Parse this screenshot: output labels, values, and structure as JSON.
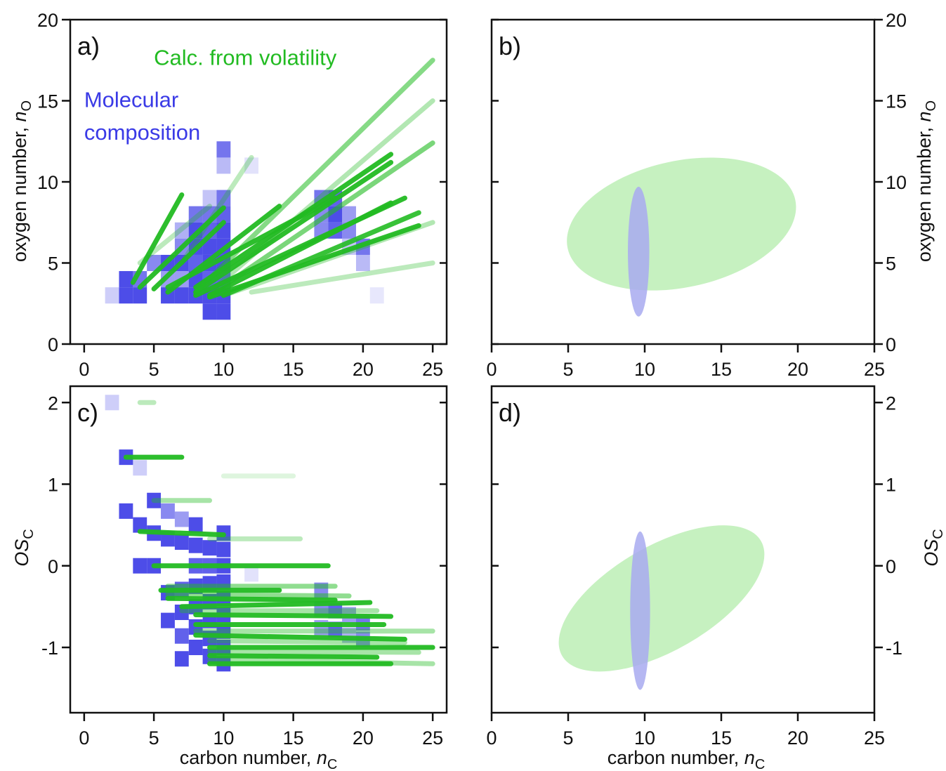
{
  "colors": {
    "green": "#22bb22",
    "green_light": "#b8eeb0",
    "blue": "#3a3ae6",
    "blue_light": "#a8aaf0",
    "axis": "#111111"
  },
  "axis_labels": {
    "no_prefix": "oxygen number, ",
    "no_sym": "n",
    "no_sub": "O",
    "os_sym": "OS",
    "os_sub": "C",
    "nc_prefix": "carbon number, ",
    "nc_sym": "n",
    "nc_sub": "C"
  },
  "chart_data": [
    {
      "panel": "a",
      "type": "scatter",
      "label": "a)",
      "xlim": [
        -1,
        26
      ],
      "ylim": [
        0,
        20
      ],
      "xticks": [
        0,
        5,
        10,
        15,
        20,
        25
      ],
      "yticks": [
        0,
        5,
        10,
        15,
        20
      ],
      "xlabel": "",
      "ylabel": "oxygen number, nO",
      "annotations": [
        {
          "text": "Calc. from volatility",
          "color": "green",
          "x": 5,
          "y": 17.2
        },
        {
          "text": "Molecular",
          "color": "blue",
          "x": 0,
          "y": 14.6
        },
        {
          "text": "composition",
          "color": "blue",
          "x": 0,
          "y": 12.6
        }
      ],
      "molecular_composition": [
        [
          2,
          3,
          0.25
        ],
        [
          3,
          3,
          0.9
        ],
        [
          3,
          4,
          0.9
        ],
        [
          4,
          3,
          0.9
        ],
        [
          4,
          4,
          0.7
        ],
        [
          5,
          5,
          0.6
        ],
        [
          6,
          3,
          0.9
        ],
        [
          6,
          4,
          0.5
        ],
        [
          6,
          5,
          0.9
        ],
        [
          7,
          3,
          0.9
        ],
        [
          7,
          4,
          0.5
        ],
        [
          7,
          5,
          0.9
        ],
        [
          7,
          6,
          0.6
        ],
        [
          7,
          7,
          0.4
        ],
        [
          8,
          3,
          0.9
        ],
        [
          8,
          4,
          0.9
        ],
        [
          8,
          5,
          0.8
        ],
        [
          8,
          6,
          0.9
        ],
        [
          8,
          7,
          0.9
        ],
        [
          8,
          8,
          0.7
        ],
        [
          9,
          2,
          0.9
        ],
        [
          9,
          3,
          0.9
        ],
        [
          9,
          4,
          0.8
        ],
        [
          9,
          5,
          0.9
        ],
        [
          9,
          6,
          0.9
        ],
        [
          9,
          7,
          0.8
        ],
        [
          9,
          8,
          0.7
        ],
        [
          9,
          9,
          0.3
        ],
        [
          10,
          2,
          0.9
        ],
        [
          10,
          3,
          0.9
        ],
        [
          10,
          4,
          0.8
        ],
        [
          10,
          5,
          0.9
        ],
        [
          10,
          6,
          0.9
        ],
        [
          10,
          7,
          0.9
        ],
        [
          10,
          8,
          0.8
        ],
        [
          10,
          9,
          0.7
        ],
        [
          10,
          11,
          0.35
        ],
        [
          10,
          12,
          0.7
        ],
        [
          12,
          11,
          0.15
        ],
        [
          17,
          7,
          0.6
        ],
        [
          17,
          8,
          0.6
        ],
        [
          17,
          9,
          0.7
        ],
        [
          18,
          7,
          0.8
        ],
        [
          18,
          8,
          0.9
        ],
        [
          18,
          9,
          0.8
        ],
        [
          19,
          7,
          0.6
        ],
        [
          19,
          8,
          0.5
        ],
        [
          19,
          6,
          0.3
        ],
        [
          20,
          6,
          0.7
        ],
        [
          20,
          5,
          0.35
        ],
        [
          21,
          3,
          0.12
        ]
      ],
      "calc_from_volatility": [
        [
          [
            3.5,
            3.8
          ],
          [
            7,
            9.2
          ],
          0.95
        ],
        [
          [
            4,
            3.5
          ],
          [
            10,
            8.4
          ],
          0.95
        ],
        [
          [
            5,
            3.4
          ],
          [
            10,
            7.5
          ],
          0.95
        ],
        [
          [
            6,
            3.2
          ],
          [
            14,
            8.5
          ],
          0.95
        ],
        [
          [
            6,
            3.5
          ],
          [
            18,
            9.0
          ],
          0.95
        ],
        [
          [
            8,
            3.5
          ],
          [
            22,
            11.7
          ],
          0.95
        ],
        [
          [
            8,
            3.2
          ],
          [
            22,
            11.2
          ],
          0.95
        ],
        [
          [
            8,
            3.0
          ],
          [
            23,
            9.0
          ],
          0.95
        ],
        [
          [
            9,
            3.0
          ],
          [
            22,
            8.7
          ],
          0.95
        ],
        [
          [
            9,
            2.9
          ],
          [
            24,
            7.3
          ],
          0.95
        ],
        [
          [
            10,
            3.0
          ],
          [
            24,
            8.1
          ],
          0.9
        ],
        [
          [
            8,
            3.2
          ],
          [
            25,
            17.5
          ],
          0.55
        ],
        [
          [
            9,
            3.2
          ],
          [
            25,
            15.0
          ],
          0.35
        ],
        [
          [
            9,
            3.0
          ],
          [
            25,
            12.4
          ],
          0.6
        ],
        [
          [
            10,
            3.0
          ],
          [
            25,
            7.5
          ],
          0.35
        ],
        [
          [
            12,
            3.2
          ],
          [
            25,
            5.0
          ],
          0.3
        ],
        [
          [
            7,
            5.0
          ],
          [
            12,
            11.5
          ],
          0.3
        ],
        [
          [
            4,
            5.0
          ],
          [
            9,
            8.5
          ],
          0.3
        ]
      ]
    },
    {
      "panel": "b",
      "type": "scatter",
      "label": "b)",
      "xlim": [
        0,
        25
      ],
      "ylim": [
        0,
        20
      ],
      "xticks": [
        0,
        5,
        10,
        15,
        20,
        25
      ],
      "yticks": [
        0,
        5,
        10,
        15,
        20
      ],
      "xlabel": "",
      "ylabel": "oxygen number, nO",
      "ellipses": [
        {
          "series": "calc_from_volatility",
          "cx": 12.4,
          "cy": 7.4,
          "rx": 7.6,
          "ry": 3.9,
          "angle_deg": 12
        },
        {
          "series": "molecular_composition",
          "cx": 9.6,
          "cy": 5.7,
          "rx": 0.7,
          "ry": 4.0,
          "angle_deg": 0
        }
      ]
    },
    {
      "panel": "c",
      "type": "scatter",
      "label": "c)",
      "xlim": [
        -1,
        26
      ],
      "ylim": [
        -1.8,
        2.2
      ],
      "xticks": [
        0,
        5,
        10,
        15,
        20,
        25
      ],
      "yticks": [
        -1,
        0,
        1,
        2
      ],
      "xlabel": "carbon number, nC",
      "ylabel": "OSC",
      "molecular_composition": [
        [
          2,
          2.0,
          0.25
        ],
        [
          3,
          1.33,
          0.9
        ],
        [
          3,
          0.67,
          0.9
        ],
        [
          4,
          1.2,
          0.25
        ],
        [
          4,
          0.5,
          0.9
        ],
        [
          4,
          0.0,
          0.9
        ],
        [
          5,
          0.8,
          0.9
        ],
        [
          5,
          0.4,
          0.9
        ],
        [
          5,
          0.0,
          0.9
        ],
        [
          6,
          0.33,
          0.9
        ],
        [
          6,
          0.67,
          0.6
        ],
        [
          6,
          -0.33,
          0.9
        ],
        [
          6,
          -0.67,
          0.9
        ],
        [
          7,
          0.57,
          0.5
        ],
        [
          7,
          0.29,
          0.9
        ],
        [
          7,
          -0.29,
          0.8
        ],
        [
          7,
          -0.57,
          0.9
        ],
        [
          7,
          -0.86,
          0.8
        ],
        [
          7,
          -1.14,
          0.9
        ],
        [
          8,
          0.5,
          0.9
        ],
        [
          8,
          0.25,
          0.9
        ],
        [
          8,
          0.0,
          0.8
        ],
        [
          8,
          -0.25,
          0.9
        ],
        [
          8,
          -0.5,
          0.9
        ],
        [
          8,
          -0.75,
          0.9
        ],
        [
          8,
          -1.0,
          0.9
        ],
        [
          9,
          0.22,
          0.9
        ],
        [
          9,
          0.0,
          0.8
        ],
        [
          9,
          -0.22,
          0.9
        ],
        [
          9,
          -0.44,
          0.9
        ],
        [
          9,
          -0.67,
          0.9
        ],
        [
          9,
          -0.89,
          0.9
        ],
        [
          9,
          -1.11,
          0.9
        ],
        [
          10,
          0.4,
          0.9
        ],
        [
          10,
          0.2,
          0.9
        ],
        [
          10,
          0.0,
          0.9
        ],
        [
          10,
          -0.2,
          0.9
        ],
        [
          10,
          -0.4,
          0.9
        ],
        [
          10,
          -0.6,
          0.9
        ],
        [
          10,
          -0.8,
          0.9
        ],
        [
          10,
          -1.0,
          0.9
        ],
        [
          10,
          -1.2,
          0.9
        ],
        [
          12,
          -0.1,
          0.15
        ],
        [
          17,
          -0.3,
          0.6
        ],
        [
          17,
          -0.53,
          0.6
        ],
        [
          17,
          -0.76,
          0.5
        ],
        [
          18,
          -0.55,
          0.8
        ],
        [
          18,
          -0.78,
          0.8
        ],
        [
          19,
          -0.6,
          0.5
        ],
        [
          19,
          -0.85,
          0.4
        ],
        [
          20,
          -0.7,
          0.7
        ],
        [
          20,
          -0.9,
          0.6
        ]
      ],
      "calc_from_volatility": [
        [
          [
            3,
            1.33
          ],
          [
            7,
            1.33
          ],
          0.95
        ],
        [
          [
            4,
            0.42
          ],
          [
            10,
            0.38
          ],
          0.95
        ],
        [
          [
            5,
            0.0
          ],
          [
            17.5,
            0.0
          ],
          0.95
        ],
        [
          [
            5.5,
            -0.3
          ],
          [
            14,
            -0.3
          ],
          0.95
        ],
        [
          [
            6,
            -0.4
          ],
          [
            18,
            -0.42
          ],
          0.95
        ],
        [
          [
            7,
            -0.5
          ],
          [
            20.5,
            -0.45
          ],
          0.95
        ],
        [
          [
            8,
            -0.6
          ],
          [
            22,
            -0.62
          ],
          0.95
        ],
        [
          [
            8,
            -0.72
          ],
          [
            21.5,
            -0.72
          ],
          0.95
        ],
        [
          [
            8,
            -0.85
          ],
          [
            23,
            -0.9
          ],
          0.95
        ],
        [
          [
            9,
            -1.0
          ],
          [
            25,
            -1.0
          ],
          0.95
        ],
        [
          [
            9,
            -1.1
          ],
          [
            21,
            -1.12
          ],
          0.95
        ],
        [
          [
            9,
            -1.2
          ],
          [
            22,
            -1.2
          ],
          0.95
        ],
        [
          [
            4,
            2.0
          ],
          [
            5,
            2.0
          ],
          0.3
        ],
        [
          [
            5,
            0.8
          ],
          [
            9,
            0.8
          ],
          0.4
        ],
        [
          [
            9,
            0.33
          ],
          [
            15.5,
            0.33
          ],
          0.3
        ],
        [
          [
            6,
            -0.25
          ],
          [
            18,
            -0.25
          ],
          0.5
        ],
        [
          [
            6,
            -0.35
          ],
          [
            19,
            -0.37
          ],
          0.5
        ],
        [
          [
            7,
            -0.55
          ],
          [
            21,
            -0.55
          ],
          0.4
        ],
        [
          [
            8,
            -0.8
          ],
          [
            25,
            -0.8
          ],
          0.4
        ],
        [
          [
            9,
            -0.92
          ],
          [
            23,
            -0.94
          ],
          0.4
        ],
        [
          [
            9,
            -1.05
          ],
          [
            24,
            -1.06
          ],
          0.4
        ],
        [
          [
            9,
            -1.15
          ],
          [
            25,
            -1.2
          ],
          0.4
        ],
        [
          [
            10,
            1.1
          ],
          [
            15,
            1.1
          ],
          0.15
        ]
      ]
    },
    {
      "panel": "d",
      "type": "scatter",
      "label": "d)",
      "xlim": [
        0,
        25
      ],
      "ylim": [
        -1.8,
        2.2
      ],
      "xticks": [
        0,
        5,
        10,
        15,
        20,
        25
      ],
      "yticks": [
        -1,
        0,
        1,
        2
      ],
      "xlabel": "carbon number, nC",
      "ylabel": "OSC",
      "ellipses": [
        {
          "series": "calc_from_volatility",
          "cx": 11.1,
          "cy": -0.4,
          "rx": 7.5,
          "ry": 0.64,
          "angle_deg": 30
        },
        {
          "series": "molecular_composition",
          "cx": 9.7,
          "cy": -0.55,
          "rx": 0.65,
          "ry": 0.97,
          "angle_deg": 0
        }
      ]
    }
  ]
}
